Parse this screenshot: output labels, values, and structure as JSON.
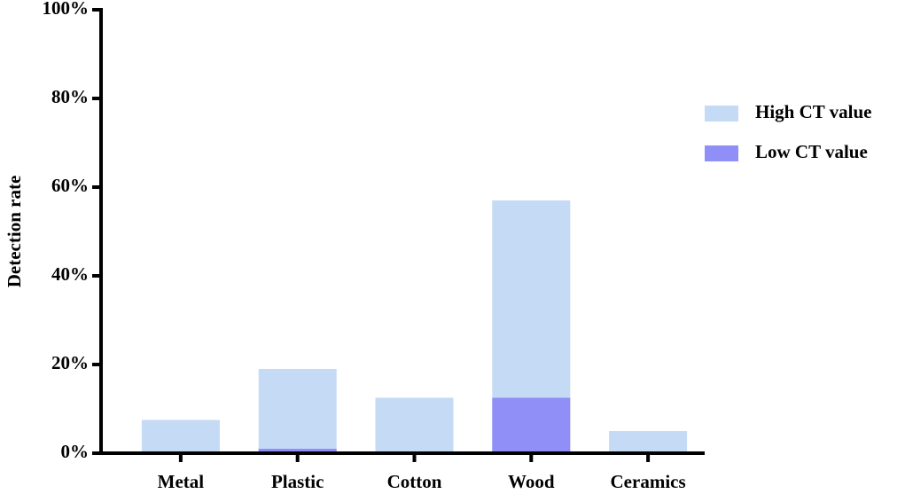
{
  "chart_data": {
    "type": "overlaid_bar",
    "y_label": "Detection rate",
    "categories": [
      "Metal",
      "Plastic",
      "Cotton",
      "Wood",
      "Ceramics"
    ],
    "series": [
      {
        "name": "High CT value",
        "color": "#c5daf5",
        "values": [
          7.5,
          19,
          12.5,
          57,
          5
        ]
      },
      {
        "name": "Low CT value",
        "color": "#8f8ff7",
        "values": [
          0,
          1,
          0,
          12.5,
          0
        ]
      }
    ],
    "ylim": [
      0,
      100
    ],
    "yticks": [
      {
        "value": 0,
        "label": "0%"
      },
      {
        "value": 20,
        "label": "20%"
      },
      {
        "value": 40,
        "label": "40%"
      },
      {
        "value": 60,
        "label": "60%"
      },
      {
        "value": 80,
        "label": "80%"
      },
      {
        "value": 100,
        "label": "100%"
      }
    ],
    "legend": "right"
  }
}
